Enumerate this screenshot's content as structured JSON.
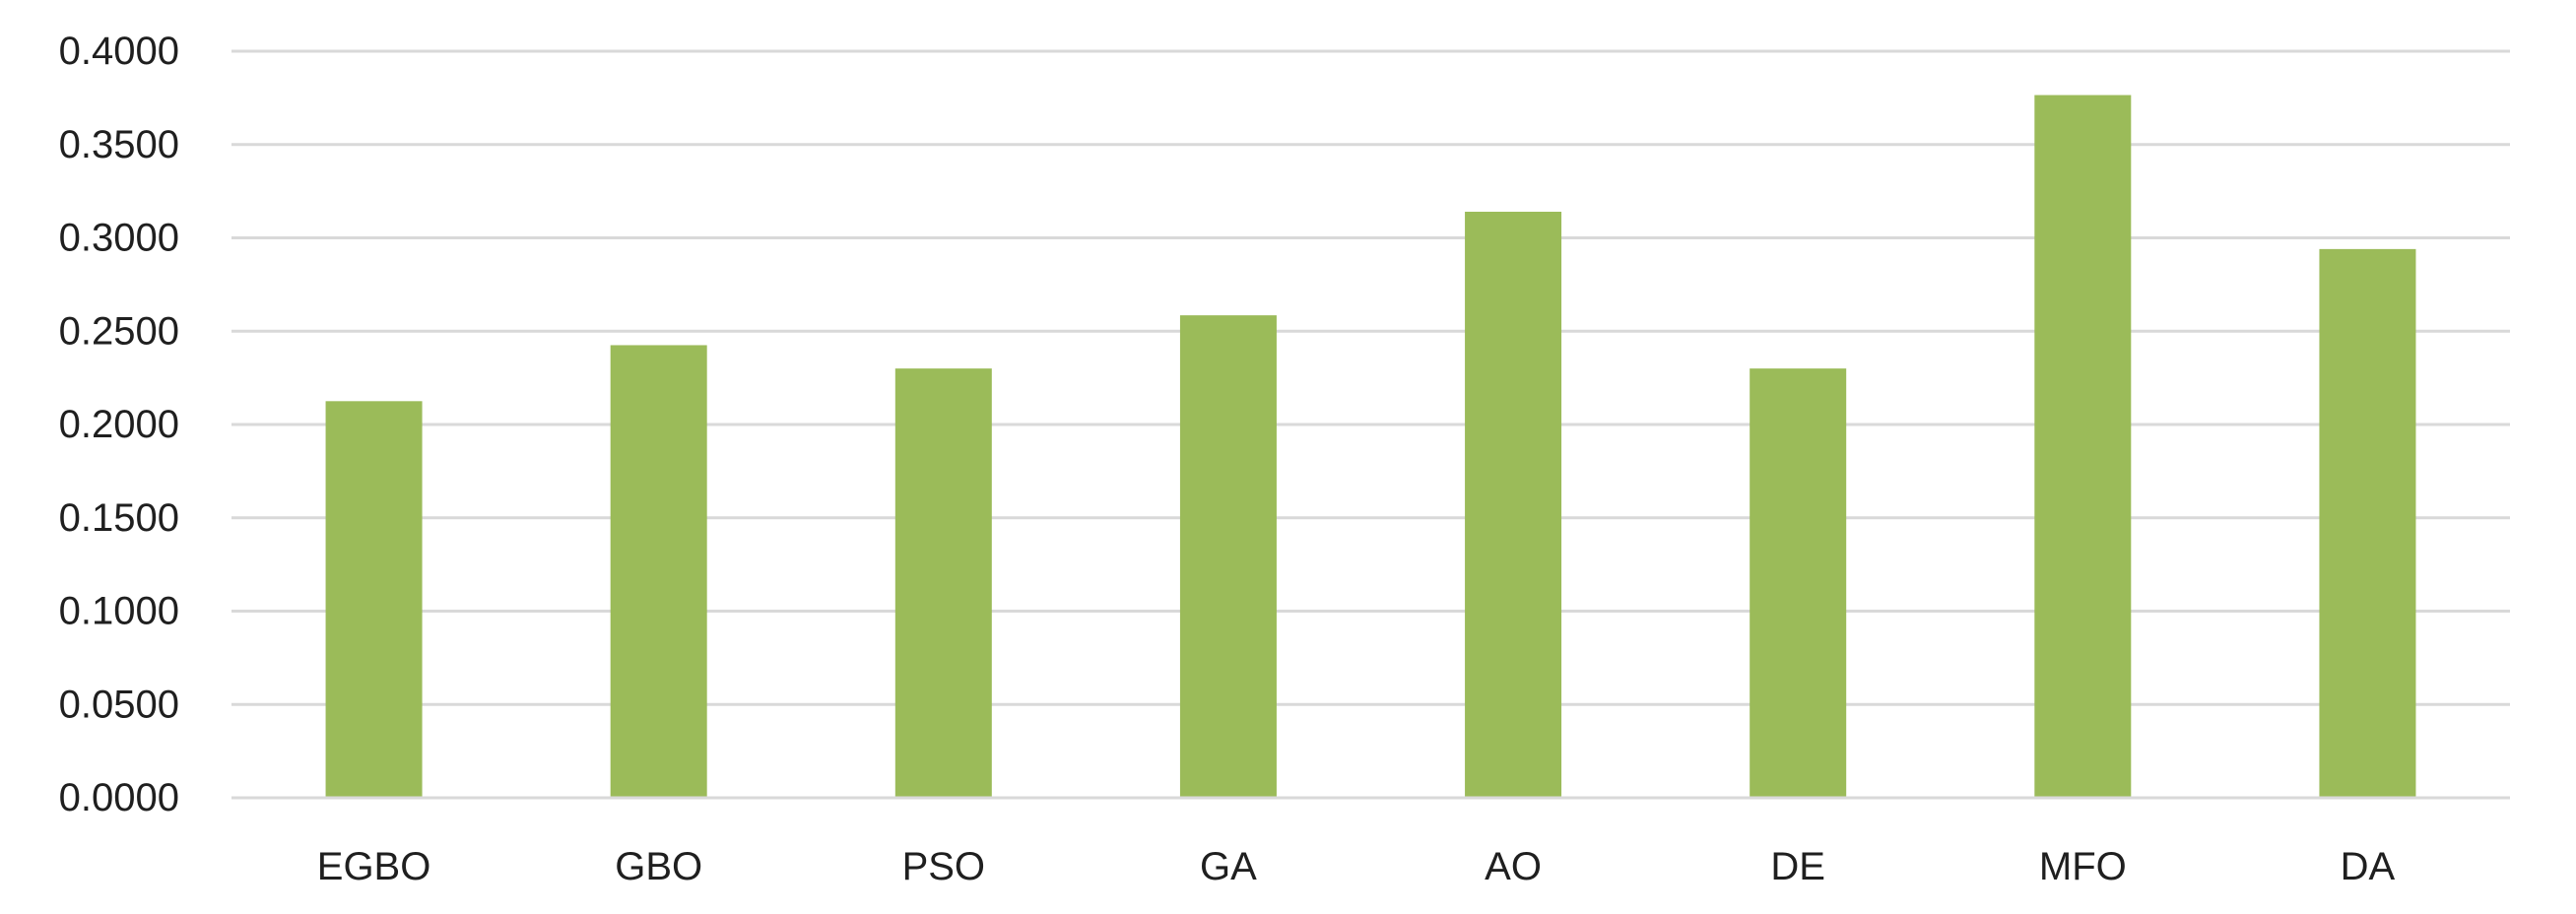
{
  "chart_data": {
    "type": "bar",
    "categories": [
      "EGBO",
      "GBO",
      "PSO",
      "GA",
      "AO",
      "DE",
      "MFO",
      "DA"
    ],
    "values": [
      0.2125,
      0.2425,
      0.23,
      0.2585,
      0.314,
      0.23,
      0.3765,
      0.294
    ],
    "title": "",
    "xlabel": "",
    "ylabel": "",
    "ylim": [
      0,
      0.4
    ],
    "yticks": [
      "0.0000",
      "0.0500",
      "0.1000",
      "0.1500",
      "0.2000",
      "0.2500",
      "0.3000",
      "0.3500",
      "0.4000"
    ],
    "grid": true,
    "legend": "none",
    "bar_color": "#9bbb59",
    "grid_color": "#d9d9d9",
    "text_color": "#1f1f1f"
  }
}
